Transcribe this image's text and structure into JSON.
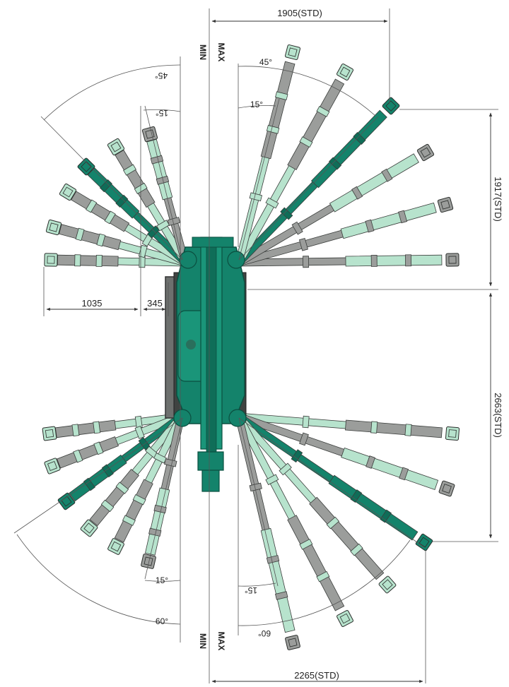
{
  "colors": {
    "dark_green": "#14836b",
    "light_green": "#b7e3cd",
    "gray_arm": "#9b9d9b",
    "outrigger_gray": "#777a78",
    "line": "#444444"
  },
  "dimensions": {
    "top_width": "1905(STD)",
    "right_upper": "1917(STD)",
    "right_lower": "2663(STD)",
    "bottom_width": "2265(STD)",
    "left_outer": "1035",
    "left_inner": "345"
  },
  "angles": {
    "tr_outer": "45°",
    "tr_inner": "15°",
    "tl_outer": "45°",
    "tl_inner": "15°",
    "bl_outer": "60°",
    "bl_inner": "15°",
    "br_outer": "60°",
    "br_inner": "15°"
  },
  "axis_labels": {
    "min": "MIN",
    "max": "MAX"
  }
}
